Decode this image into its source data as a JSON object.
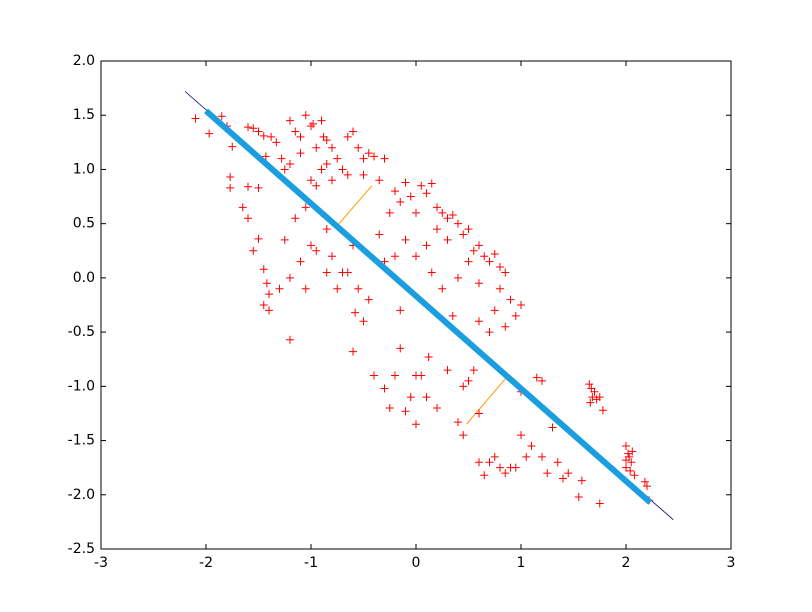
{
  "chart_data": {
    "type": "scatter",
    "xlim": [
      -3,
      3
    ],
    "ylim": [
      -2.5,
      2.0
    ],
    "xticks": [
      -3,
      -2,
      -1,
      0,
      1,
      2,
      3
    ],
    "yticks": [
      {
        "value": 2.0,
        "label": "2.0"
      },
      1.5,
      {
        "value": 1.0,
        "label": "1.0"
      },
      0.5,
      {
        "value": 0.0,
        "label": "0.0"
      },
      -0.5,
      {
        "value": -1.0,
        "label": "-1.0"
      },
      -1.5,
      {
        "value": -2.0,
        "label": "-2.0"
      },
      -2.5
    ],
    "points": {
      "color": "#ff0000",
      "marker": "+",
      "x": [
        -2.1,
        -1.97,
        -1.85,
        -1.8,
        -1.75,
        -1.77,
        -1.77,
        -1.6,
        -1.6,
        -1.55,
        -1.5,
        -1.45,
        -1.5,
        -1.43,
        -1.38,
        -1.33,
        -1.28,
        -1.25,
        -1.2,
        -1.15,
        -1.1,
        -1.05,
        -1.0,
        -0.98,
        -0.95,
        -0.9,
        -0.88,
        -0.85,
        -0.8,
        -0.85,
        -0.9,
        -0.75,
        -0.7,
        -0.65,
        -0.6,
        -0.55,
        -0.5,
        -0.45,
        -0.4,
        -0.3,
        -1.0,
        -1.1,
        -1.2,
        -0.95,
        -0.8,
        -0.65,
        -0.5,
        -0.35,
        -1.65,
        -1.6,
        -1.55,
        -1.5,
        -1.45,
        -1.42,
        -1.4,
        -1.45,
        -1.4,
        -1.2,
        -1.3,
        -1.25,
        -1.15,
        -1.1,
        -1.05,
        -1.0,
        -0.95,
        -0.9,
        -0.85,
        -0.8,
        -0.75,
        -0.7,
        -0.65,
        -0.6,
        -0.58,
        -0.55,
        -0.5,
        -1.2,
        -1.05,
        -0.85,
        -0.45,
        -0.2,
        -0.15,
        -0.1,
        -0.05,
        0.0,
        0.05,
        0.1,
        0.15,
        0.2,
        0.25,
        0.3,
        0.35,
        0.4,
        0.45,
        0.5,
        0.55,
        0.6,
        0.65,
        0.7,
        0.75,
        0.8,
        0.85,
        0.9,
        0.95,
        1.0,
        0.8,
        0.7,
        0.6,
        0.5,
        0.4,
        0.3,
        0.2,
        0.1,
        -0.1,
        -0.2,
        -0.3,
        -0.35,
        -0.25,
        0.0,
        0.15,
        0.25,
        -0.15,
        0.35,
        0.6,
        0.75,
        0.85,
        -0.6,
        -0.4,
        -0.3,
        -0.2,
        -0.15,
        -0.1,
        -0.05,
        0.0,
        0.05,
        0.1,
        0.12,
        0.2,
        -0.25,
        0.0,
        0.3,
        0.4,
        0.45,
        0.5,
        0.55,
        0.45,
        0.6,
        0.6,
        0.65,
        0.7,
        0.75,
        0.8,
        0.85,
        0.9,
        0.95,
        1.0,
        1.05,
        1.1,
        1.2,
        1.25,
        1.3,
        1.35,
        1.4,
        1.45,
        1.55,
        1.58,
        1.75,
        1.15,
        1.2,
        1.0,
        1.65,
        1.67,
        1.7,
        1.68,
        1.72,
        1.66,
        1.75,
        1.78,
        2.0,
        2.02,
        2.03,
        2.05,
        2.0,
        2.04,
        2.08,
        2.18,
        2.2,
        2.22,
        2.0,
        2.06
      ],
      "y": [
        1.47,
        1.33,
        1.49,
        1.4,
        1.21,
        0.93,
        0.83,
        0.84,
        1.39,
        1.38,
        1.35,
        1.31,
        0.83,
        1.12,
        1.3,
        1.25,
        1.1,
        1.0,
        1.45,
        1.35,
        1.3,
        1.5,
        1.4,
        1.42,
        1.2,
        1.45,
        1.3,
        1.27,
        1.2,
        1.05,
        1.0,
        1.1,
        1.0,
        1.3,
        1.35,
        1.2,
        1.1,
        1.15,
        1.12,
        1.1,
        0.9,
        1.15,
        1.05,
        0.85,
        0.9,
        0.95,
        0.95,
        0.9,
        0.65,
        0.55,
        0.25,
        0.36,
        0.08,
        -0.05,
        -0.15,
        -0.25,
        -0.3,
        -0.57,
        -0.1,
        0.35,
        0.55,
        0.15,
        0.65,
        0.3,
        0.25,
        0.6,
        0.45,
        0.2,
        -0.1,
        0.05,
        0.05,
        0.3,
        -0.32,
        -0.1,
        -0.4,
        0.0,
        -0.1,
        0.05,
        -0.2,
        0.8,
        0.7,
        0.88,
        0.75,
        0.6,
        0.85,
        0.78,
        0.87,
        0.65,
        0.6,
        0.55,
        0.58,
        0.5,
        0.4,
        0.45,
        0.25,
        0.3,
        0.2,
        0.15,
        0.22,
        0.1,
        0.05,
        -0.2,
        -0.35,
        -0.25,
        -0.1,
        -0.5,
        -0.4,
        0.15,
        0.0,
        0.35,
        0.45,
        0.3,
        0.35,
        0.2,
        0.15,
        0.4,
        0.6,
        0.2,
        0.05,
        -0.1,
        -0.3,
        -0.35,
        -0.05,
        -0.3,
        -0.45,
        -0.68,
        -0.9,
        -1.02,
        -0.9,
        -0.65,
        -1.23,
        -1.1,
        -0.9,
        -0.9,
        -1.1,
        -0.73,
        -1.2,
        -1.2,
        -1.35,
        -0.85,
        -1.33,
        -1.0,
        -0.95,
        -0.85,
        -1.45,
        -1.25,
        -1.7,
        -1.82,
        -1.7,
        -1.65,
        -1.75,
        -1.8,
        -1.75,
        -1.75,
        -1.45,
        -1.65,
        -1.55,
        -1.65,
        -1.8,
        -1.38,
        -1.7,
        -1.85,
        -1.8,
        -2.02,
        -1.87,
        -2.08,
        -0.92,
        -0.95,
        -1.05,
        -0.98,
        -1.02,
        -1.05,
        -1.1,
        -1.12,
        -1.15,
        -1.1,
        -1.22,
        -1.55,
        -1.62,
        -1.65,
        -1.7,
        -1.75,
        -1.78,
        -1.82,
        -1.88,
        -1.92,
        -2.05,
        -1.68,
        -1.6
      ]
    },
    "line": {
      "color": "#000080",
      "x": [
        -2.2,
        2.45
      ],
      "y": [
        1.72,
        -2.23
      ]
    },
    "projection": {
      "color": "#1a9ee0",
      "x": [
        -2.0,
        2.23
      ],
      "y": [
        1.54,
        -2.07
      ]
    },
    "segments": [
      {
        "color": "#ff9900",
        "x": [
          -0.42,
          -0.75
        ],
        "y": [
          0.85,
          0.48
        ]
      },
      {
        "color": "#ff9900",
        "x": [
          0.86,
          0.48
        ],
        "y": [
          -0.92,
          -1.35
        ]
      }
    ]
  }
}
